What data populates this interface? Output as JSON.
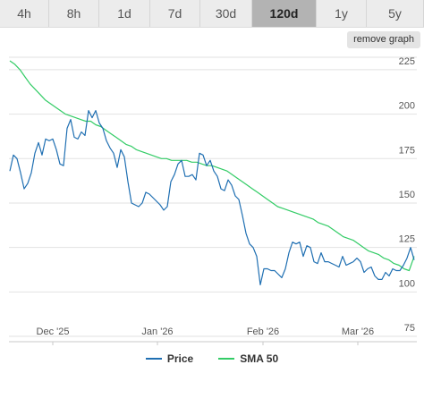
{
  "tabs": [
    {
      "label": "4h",
      "active": false
    },
    {
      "label": "8h",
      "active": false
    },
    {
      "label": "1d",
      "active": false
    },
    {
      "label": "7d",
      "active": false
    },
    {
      "label": "30d",
      "active": false
    },
    {
      "label": "120d",
      "active": true
    },
    {
      "label": "1y",
      "active": false
    },
    {
      "label": "5y",
      "active": false
    }
  ],
  "remove_graph_label": "remove graph",
  "colors": {
    "price": "#1f6fb2",
    "sma": "#33cc66",
    "grid": "#e2e2e2",
    "axis_text": "#555555"
  },
  "chart_data": {
    "type": "line",
    "x_ticks": [
      "Dec '25",
      "Jan '26",
      "Feb '26",
      "Mar '26"
    ],
    "y_ticks": [
      75,
      100,
      125,
      150,
      175,
      200,
      225
    ],
    "ylim": [
      72,
      232
    ],
    "grid": true,
    "legend_position": "bottom",
    "series": [
      {
        "name": "Price",
        "values": [
          168,
          177,
          175,
          167,
          158,
          161,
          167,
          178,
          184,
          177,
          186,
          185,
          186,
          180,
          172,
          171,
          192,
          197,
          187,
          186,
          190,
          188,
          202,
          198,
          202,
          195,
          192,
          185,
          181,
          178,
          170,
          180,
          176,
          162,
          150,
          149,
          148,
          150,
          156,
          155,
          153,
          151,
          149,
          146,
          148,
          162,
          166,
          172,
          174,
          165,
          165,
          166,
          163,
          178,
          177,
          171,
          174,
          168,
          165,
          158,
          157,
          163,
          160,
          154,
          152,
          143,
          133,
          127,
          125,
          120,
          104,
          113,
          113,
          112,
          112,
          110,
          108,
          113,
          122,
          128,
          127,
          128,
          120,
          126,
          125,
          117,
          116,
          122,
          117,
          117,
          116,
          115,
          114,
          120,
          115,
          116,
          117,
          119,
          117,
          111,
          113,
          114,
          109,
          107,
          107,
          111,
          109,
          113,
          112,
          112,
          115,
          119,
          125,
          118
        ],
        "smooth": false
      },
      {
        "name": "SMA 50",
        "values": [
          230,
          228,
          225,
          221,
          217,
          214,
          211,
          208,
          206,
          204,
          202,
          200,
          199,
          198,
          197,
          196,
          196,
          194,
          193,
          191,
          189,
          187,
          185,
          183,
          182,
          180,
          179,
          178,
          177,
          176,
          175,
          175,
          174,
          174,
          174,
          174,
          173,
          173,
          172,
          171,
          171,
          170,
          169,
          168,
          166,
          164,
          162,
          160,
          158,
          156,
          154,
          152,
          150,
          148,
          147,
          146,
          145,
          144,
          143,
          142,
          141,
          139,
          138,
          137,
          135,
          133,
          131,
          130,
          129,
          127,
          125,
          123,
          122,
          121,
          119,
          118,
          116,
          115,
          113,
          112,
          120
        ]
      }
    ]
  }
}
